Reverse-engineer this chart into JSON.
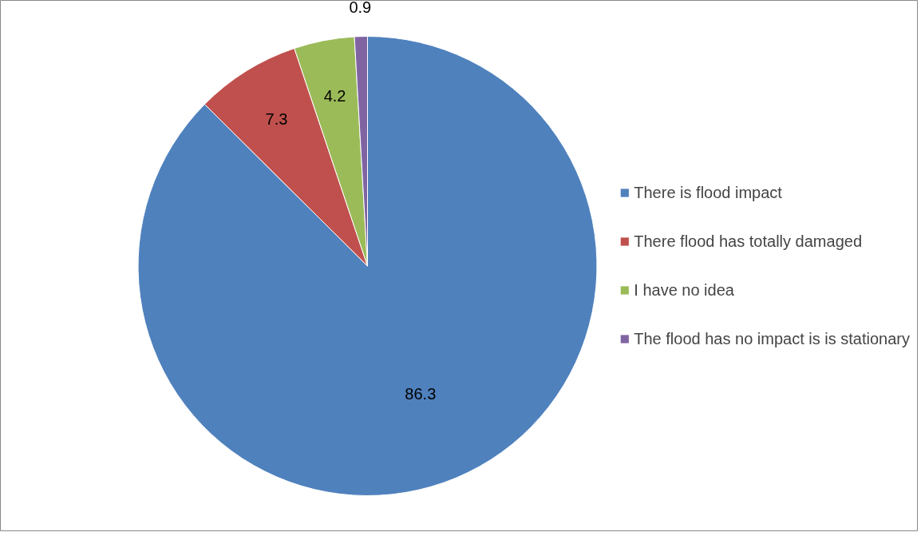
{
  "chart_data": {
    "type": "pie",
    "categories": [
      "There is flood impact",
      "There flood has totally damaged",
      "I have no idea",
      "The flood has no impact is is stationary"
    ],
    "values": [
      86.3,
      7.3,
      4.2,
      0.9
    ],
    "colors": [
      "#4f81bd",
      "#c0504d",
      "#9bbb59",
      "#8064a2"
    ],
    "data_labels": true,
    "legend": "right"
  }
}
